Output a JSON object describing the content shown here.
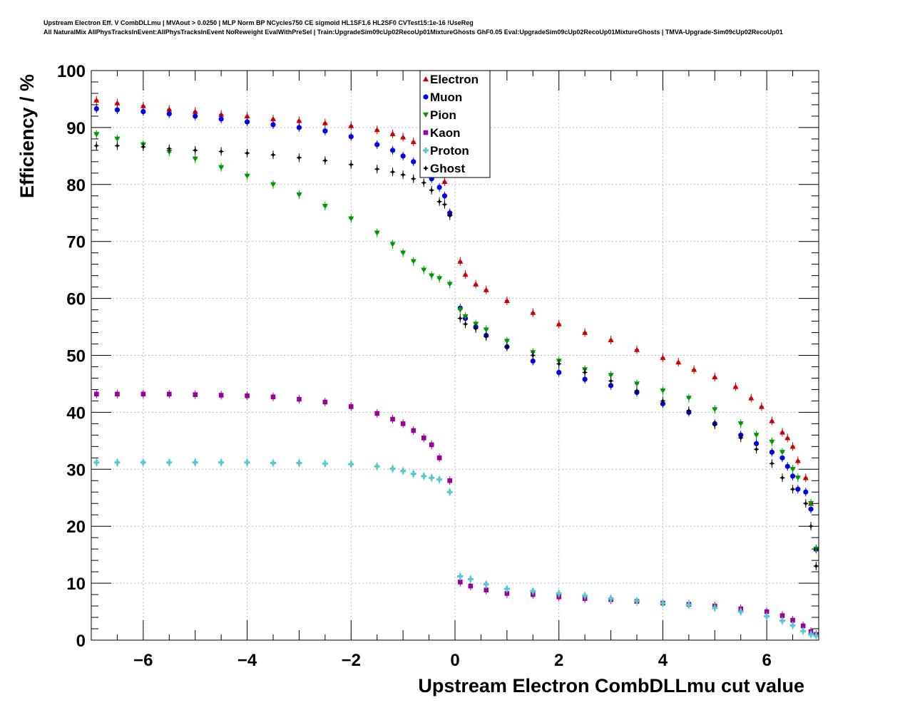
{
  "header": {
    "title_line1": "Upstream Electron Eff. V CombDLLmu | MVAout > 0.0250 | MLP Norm BP NCycles750 CE sigmoid HL1SF1.6 HL2SF0 CVTest15:1e-16 !UseReg",
    "title_line2": "All NaturalMix AllPhysTracksInEvent:AllPhysTracksInEvent NoReweight EvalWithPreSel | Train:UpgradeSim09cUp02RecoUp01MixtureGhosts GhF0.05 Eval:UpgradeSim09cUp02RecoUp01MixtureGhosts | TMVA-Upgrade-Sim09cUp02RecoUp01"
  },
  "chart_data": {
    "type": "scatter",
    "xlabel": "Upstream Electron CombDLLmu cut value",
    "ylabel": "Efficiency / %",
    "xlim": [
      -7,
      7
    ],
    "ylim": [
      0,
      100
    ],
    "x_ticks": [
      -6,
      -4,
      -2,
      0,
      2,
      4,
      6
    ],
    "x_tick_labels": [
      "−6",
      "−4",
      "−2",
      "0",
      "2",
      "4",
      "6"
    ],
    "y_ticks": [
      0,
      10,
      20,
      30,
      40,
      50,
      60,
      70,
      80,
      90,
      100
    ],
    "y_tick_labels": [
      "0",
      "10",
      "20",
      "30",
      "40",
      "50",
      "60",
      "70",
      "80",
      "90",
      "100"
    ],
    "grid": true,
    "legend_position": "top-center",
    "series": [
      {
        "name": "Electron",
        "color": "#cc0000",
        "marker": "triangle-up",
        "points": [
          [
            -6.9,
            94.8
          ],
          [
            -6.5,
            94.3
          ],
          [
            -6,
            93.8
          ],
          [
            -5.5,
            93.2
          ],
          [
            -5,
            92.8
          ],
          [
            -4.5,
            92.3
          ],
          [
            -4,
            92
          ],
          [
            -3.5,
            91.5
          ],
          [
            -3,
            91.2
          ],
          [
            -2.5,
            90.8
          ],
          [
            -2,
            90.3
          ],
          [
            -1.5,
            89.6
          ],
          [
            -1.2,
            88.9
          ],
          [
            -1,
            88.3
          ],
          [
            -0.8,
            87.5
          ],
          [
            -0.6,
            86.5
          ],
          [
            -0.45,
            85
          ],
          [
            -0.3,
            82
          ],
          [
            -0.2,
            80.5
          ],
          [
            -0.1,
            75
          ],
          [
            0.1,
            66.5
          ],
          [
            0.2,
            64.2
          ],
          [
            0.4,
            62.5
          ],
          [
            0.6,
            61.5
          ],
          [
            1,
            59.6
          ],
          [
            1.5,
            57.5
          ],
          [
            2,
            55.5
          ],
          [
            2.5,
            54
          ],
          [
            3,
            52.7
          ],
          [
            3.5,
            51
          ],
          [
            4,
            49.6
          ],
          [
            4.3,
            48.8
          ],
          [
            4.6,
            47.5
          ],
          [
            5,
            46.2
          ],
          [
            5.4,
            44.5
          ],
          [
            5.7,
            42.5
          ],
          [
            5.9,
            41
          ],
          [
            6.1,
            38.5
          ],
          [
            6.3,
            36.5
          ],
          [
            6.4,
            35.5
          ],
          [
            6.5,
            34
          ],
          [
            6.6,
            31.5
          ],
          [
            6.75,
            28.5
          ],
          [
            6.85,
            24
          ],
          [
            6.95,
            16
          ]
        ]
      },
      {
        "name": "Muon",
        "color": "#0000ee",
        "marker": "circle",
        "points": [
          [
            -6.9,
            93.3
          ],
          [
            -6.5,
            93.1
          ],
          [
            -6,
            92.8
          ],
          [
            -5.5,
            92.4
          ],
          [
            -5,
            92
          ],
          [
            -4.5,
            91.5
          ],
          [
            -4,
            91
          ],
          [
            -3.5,
            90.5
          ],
          [
            -3,
            90
          ],
          [
            -2.5,
            89.4
          ],
          [
            -2,
            88.4
          ],
          [
            -1.5,
            87
          ],
          [
            -1.2,
            86
          ],
          [
            -1,
            85
          ],
          [
            -0.8,
            84
          ],
          [
            -0.6,
            82.5
          ],
          [
            -0.45,
            81
          ],
          [
            -0.3,
            79.5
          ],
          [
            -0.2,
            78
          ],
          [
            -0.1,
            75
          ],
          [
            0.1,
            58.3
          ],
          [
            0.2,
            56.5
          ],
          [
            0.4,
            55
          ],
          [
            0.6,
            53.5
          ],
          [
            1,
            51.5
          ],
          [
            1.5,
            49
          ],
          [
            2,
            47
          ],
          [
            2.5,
            45.8
          ],
          [
            3,
            44.7
          ],
          [
            3.5,
            43.5
          ],
          [
            4,
            41.5
          ],
          [
            4.5,
            40
          ],
          [
            5,
            38
          ],
          [
            5.5,
            36
          ],
          [
            5.8,
            34.5
          ],
          [
            6.1,
            33
          ],
          [
            6.3,
            32
          ],
          [
            6.4,
            30.5
          ],
          [
            6.5,
            28.8
          ],
          [
            6.6,
            26.5
          ],
          [
            6.75,
            26
          ],
          [
            6.85,
            23
          ],
          [
            6.95,
            16
          ]
        ]
      },
      {
        "name": "Pion",
        "color": "#009900",
        "marker": "triangle-down",
        "points": [
          [
            -6.9,
            88.8
          ],
          [
            -6.5,
            88
          ],
          [
            -6,
            87
          ],
          [
            -5.5,
            85.7
          ],
          [
            -5,
            84.5
          ],
          [
            -4.5,
            83
          ],
          [
            -4,
            81.5
          ],
          [
            -3.5,
            80
          ],
          [
            -3,
            78.2
          ],
          [
            -2.5,
            76.2
          ],
          [
            -2,
            74
          ],
          [
            -1.5,
            71.5
          ],
          [
            -1.2,
            69.5
          ],
          [
            -1,
            68
          ],
          [
            -0.8,
            66.5
          ],
          [
            -0.6,
            65
          ],
          [
            -0.45,
            64
          ],
          [
            -0.3,
            63.5
          ],
          [
            -0.1,
            62.5
          ],
          [
            0.1,
            58
          ],
          [
            0.2,
            56.8
          ],
          [
            0.4,
            55.5
          ],
          [
            0.6,
            54.5
          ],
          [
            1,
            52.5
          ],
          [
            1.5,
            50.5
          ],
          [
            2,
            49
          ],
          [
            2.5,
            47.5
          ],
          [
            3,
            46.5
          ],
          [
            3.5,
            45
          ],
          [
            4,
            43.8
          ],
          [
            4.5,
            42.5
          ],
          [
            5,
            40.5
          ],
          [
            5.5,
            38
          ],
          [
            5.8,
            36
          ],
          [
            6.1,
            34.8
          ],
          [
            6.3,
            33
          ],
          [
            6.5,
            30
          ],
          [
            6.6,
            28.5
          ],
          [
            6.85,
            24
          ],
          [
            6.95,
            16
          ]
        ]
      },
      {
        "name": "Kaon",
        "color": "#990099",
        "marker": "square",
        "points": [
          [
            -6.9,
            43.2
          ],
          [
            -6.5,
            43.2
          ],
          [
            -6,
            43.2
          ],
          [
            -5.5,
            43.2
          ],
          [
            -5,
            43.1
          ],
          [
            -4.5,
            43
          ],
          [
            -4,
            42.9
          ],
          [
            -3.5,
            42.7
          ],
          [
            -3,
            42.3
          ],
          [
            -2.5,
            41.8
          ],
          [
            -2,
            41
          ],
          [
            -1.5,
            39.8
          ],
          [
            -1.2,
            38.8
          ],
          [
            -1,
            38
          ],
          [
            -0.8,
            36.8
          ],
          [
            -0.6,
            35.5
          ],
          [
            -0.45,
            34.3
          ],
          [
            -0.3,
            32
          ],
          [
            -0.1,
            28
          ],
          [
            0.1,
            10.2
          ],
          [
            0.3,
            9.5
          ],
          [
            0.6,
            8.8
          ],
          [
            1,
            8.2
          ],
          [
            1.5,
            8
          ],
          [
            2,
            7.6
          ],
          [
            2.5,
            7.3
          ],
          [
            3,
            7.1
          ],
          [
            3.5,
            6.8
          ],
          [
            4,
            6.5
          ],
          [
            4.5,
            6.3
          ],
          [
            5,
            6
          ],
          [
            5.5,
            5.5
          ],
          [
            6,
            5
          ],
          [
            6.3,
            4.3
          ],
          [
            6.5,
            3.5
          ],
          [
            6.7,
            2.5
          ],
          [
            6.85,
            1.5
          ],
          [
            6.95,
            1
          ]
        ]
      },
      {
        "name": "Proton",
        "color": "#55c8d0",
        "marker": "cross",
        "points": [
          [
            -6.9,
            31.2
          ],
          [
            -6.5,
            31.2
          ],
          [
            -6,
            31.2
          ],
          [
            -5.5,
            31.2
          ],
          [
            -5,
            31.2
          ],
          [
            -4.5,
            31.2
          ],
          [
            -4,
            31.2
          ],
          [
            -3.5,
            31.1
          ],
          [
            -3,
            31.1
          ],
          [
            -2.5,
            31
          ],
          [
            -2,
            30.9
          ],
          [
            -1.5,
            30.5
          ],
          [
            -1.2,
            30.1
          ],
          [
            -1,
            29.7
          ],
          [
            -0.8,
            29.2
          ],
          [
            -0.6,
            28.8
          ],
          [
            -0.45,
            28.5
          ],
          [
            -0.3,
            28.2
          ],
          [
            -0.1,
            26
          ],
          [
            0.1,
            11.2
          ],
          [
            0.3,
            10.7
          ],
          [
            0.6,
            9.8
          ],
          [
            1,
            9
          ],
          [
            1.5,
            8.6
          ],
          [
            2,
            8.2
          ],
          [
            2.5,
            7.8
          ],
          [
            3,
            7.3
          ],
          [
            3.5,
            6.9
          ],
          [
            4,
            6.5
          ],
          [
            4.5,
            6.2
          ],
          [
            5,
            5.7
          ],
          [
            5.5,
            5
          ],
          [
            6,
            4.2
          ],
          [
            6.3,
            3.4
          ],
          [
            6.5,
            2.6
          ],
          [
            6.7,
            1.6
          ],
          [
            6.85,
            1
          ],
          [
            6.95,
            0.8
          ]
        ]
      },
      {
        "name": "Ghost",
        "color": "#000000",
        "marker": "star",
        "points": [
          [
            -6.9,
            86.8
          ],
          [
            -6.5,
            86.8
          ],
          [
            -6,
            86.6
          ],
          [
            -5.5,
            86.3
          ],
          [
            -5,
            86
          ],
          [
            -4.5,
            85.8
          ],
          [
            -4,
            85.5
          ],
          [
            -3.5,
            85.2
          ],
          [
            -3,
            84.7
          ],
          [
            -2.5,
            84.2
          ],
          [
            -2,
            83.5
          ],
          [
            -1.5,
            82.7
          ],
          [
            -1.2,
            82.2
          ],
          [
            -1,
            81.7
          ],
          [
            -0.8,
            81
          ],
          [
            -0.6,
            80.3
          ],
          [
            -0.45,
            79
          ],
          [
            -0.3,
            77
          ],
          [
            -0.2,
            76.5
          ],
          [
            -0.1,
            74.5
          ],
          [
            0.1,
            56.5
          ],
          [
            0.2,
            55.5
          ],
          [
            0.4,
            54.7
          ],
          [
            0.6,
            53.3
          ],
          [
            1,
            51.5
          ],
          [
            1.5,
            50
          ],
          [
            2,
            48.5
          ],
          [
            2.5,
            47
          ],
          [
            3,
            45.5
          ],
          [
            3.5,
            43.8
          ],
          [
            4,
            42
          ],
          [
            4.5,
            40.3
          ],
          [
            5,
            37.8
          ],
          [
            5.5,
            35.5
          ],
          [
            5.8,
            33.5
          ],
          [
            6.1,
            31
          ],
          [
            6.3,
            28.5
          ],
          [
            6.5,
            26.5
          ],
          [
            6.75,
            24
          ],
          [
            6.85,
            20
          ],
          [
            6.95,
            13
          ]
        ]
      }
    ]
  }
}
